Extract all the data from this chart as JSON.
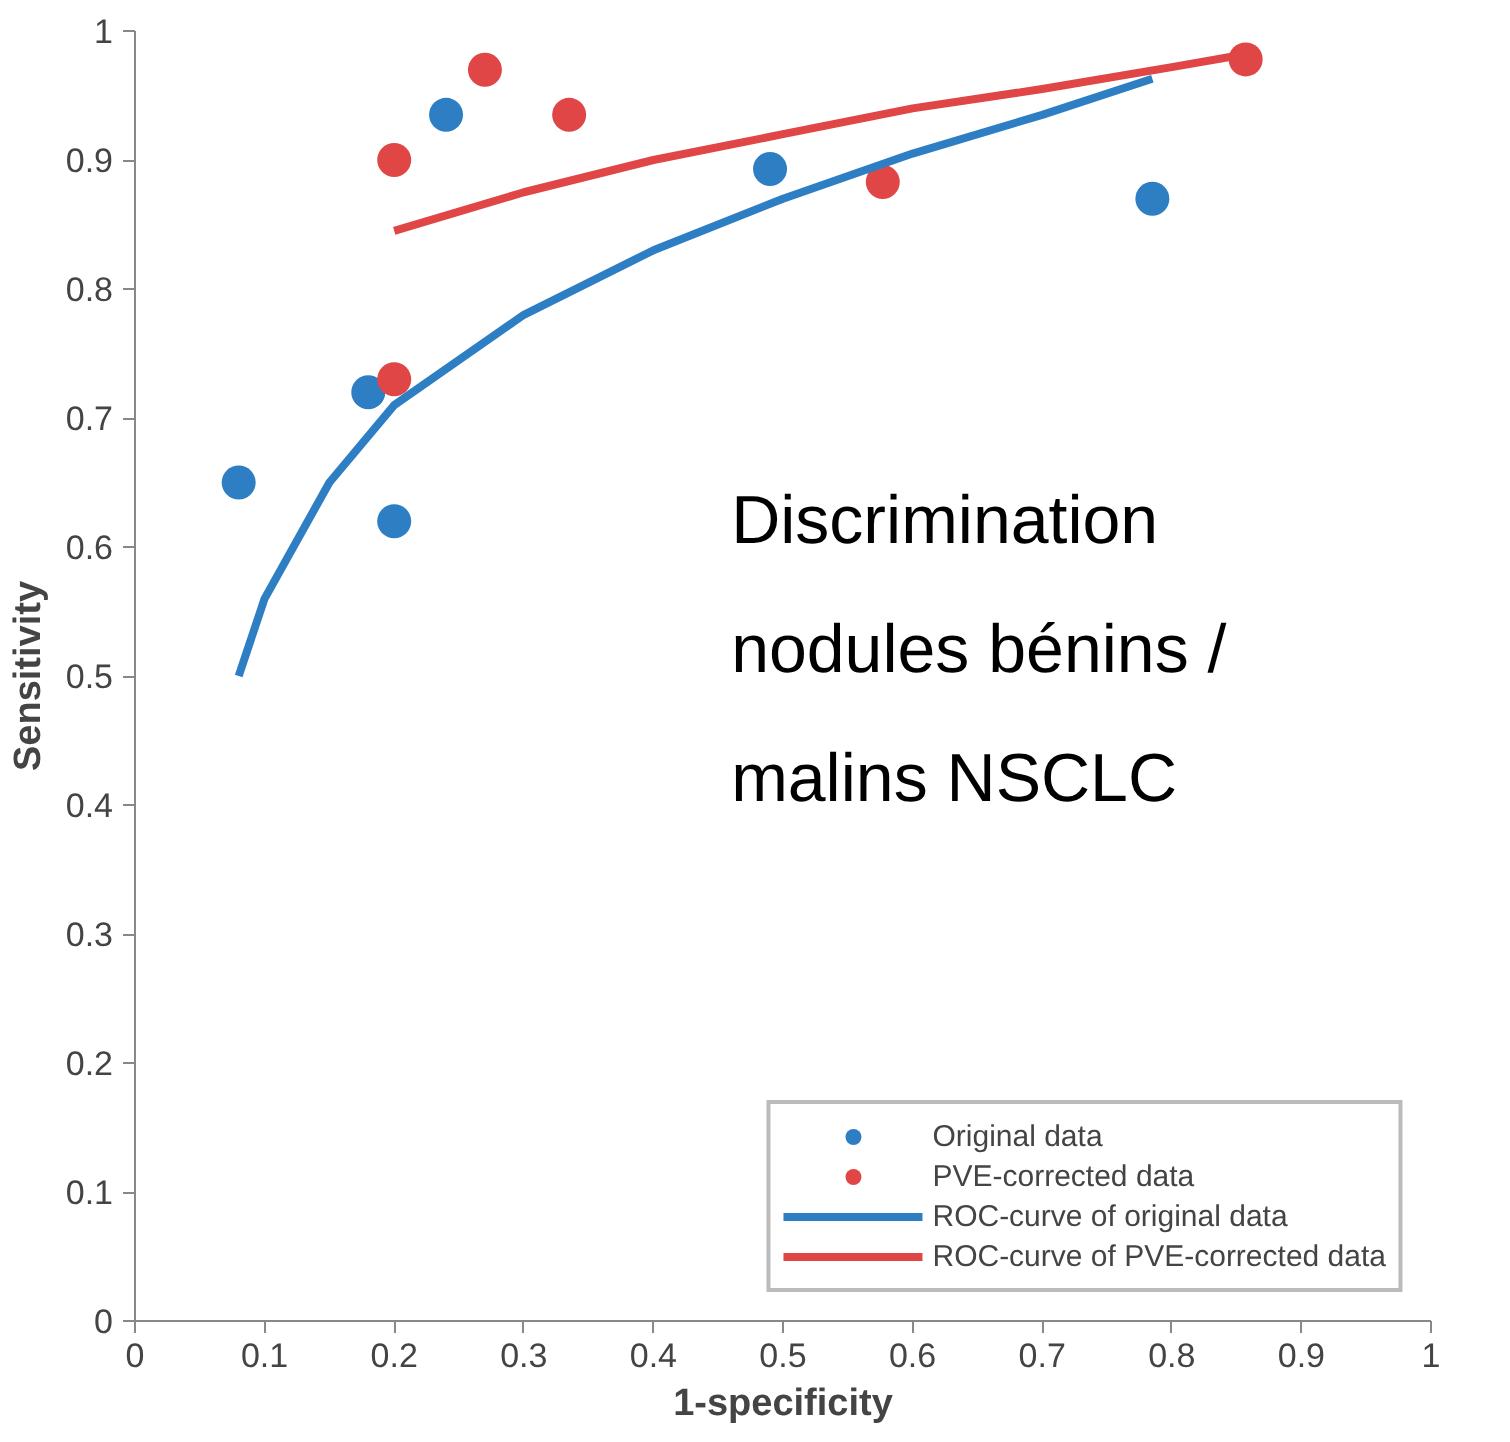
{
  "chart_data": {
    "type": "scatter",
    "xlabel": "1-specificity",
    "ylabel": "Sensitivity",
    "xlim": [
      0,
      1
    ],
    "ylim": [
      0,
      1
    ],
    "xticks": [
      0,
      0.1,
      0.2,
      0.3,
      0.4,
      0.5,
      0.6,
      0.7,
      0.8,
      0.9,
      1
    ],
    "yticks": [
      0,
      0.1,
      0.2,
      0.3,
      0.4,
      0.5,
      0.6,
      0.7,
      0.8,
      0.9,
      1
    ],
    "grid": false,
    "legend": "bottom right",
    "annotations": [
      "Discrimination nodules bénins / malins NSCLC"
    ],
    "series": [
      {
        "name": "Original data",
        "marker": "circle",
        "color": "#2e7ec4",
        "x": [
          0.08,
          0.18,
          0.2,
          0.24,
          0.49,
          0.785
        ],
        "values": [
          0.65,
          0.72,
          0.62,
          0.935,
          0.893,
          0.87
        ]
      },
      {
        "name": "PVE-corrected data",
        "marker": "circle",
        "color": "#e04646",
        "x": [
          0.2,
          0.2,
          0.27,
          0.335,
          0.577,
          0.857
        ],
        "values": [
          0.9,
          0.73,
          0.97,
          0.935,
          0.883,
          0.978
        ]
      },
      {
        "name": "ROC-curve of original data",
        "type": "line",
        "color": "#2e7ec4",
        "x": [
          0.08,
          0.1,
          0.15,
          0.2,
          0.3,
          0.4,
          0.5,
          0.6,
          0.7,
          0.785
        ],
        "values": [
          0.5,
          0.56,
          0.65,
          0.71,
          0.78,
          0.83,
          0.87,
          0.905,
          0.935,
          0.963
        ]
      },
      {
        "name": "ROC-curve of PVE-corrected data",
        "type": "line",
        "color": "#e04646",
        "x": [
          0.2,
          0.3,
          0.4,
          0.5,
          0.6,
          0.7,
          0.8,
          0.857
        ],
        "values": [
          0.845,
          0.875,
          0.9,
          0.92,
          0.94,
          0.955,
          0.972,
          0.982
        ]
      }
    ]
  }
}
